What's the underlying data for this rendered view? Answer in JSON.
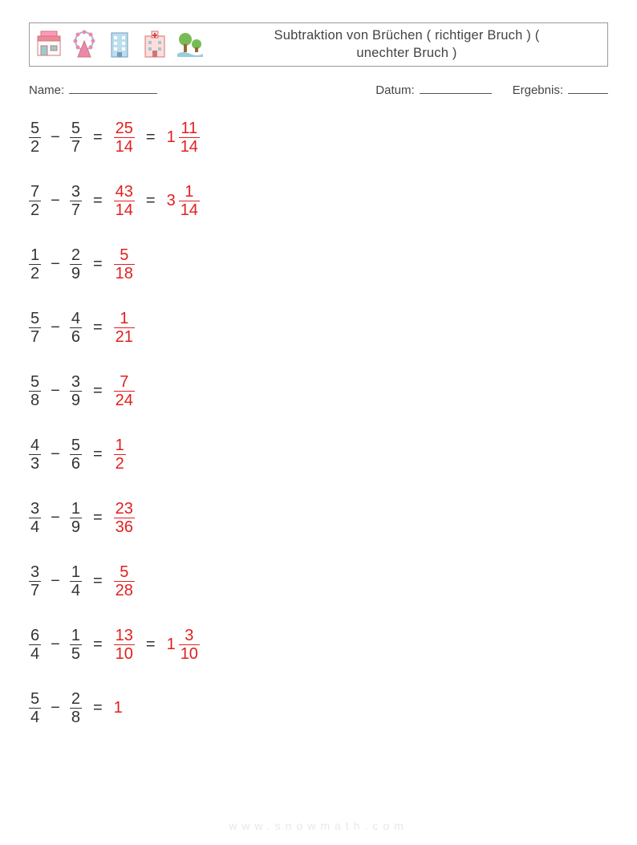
{
  "header": {
    "title_line1": "Subtraktion von Brüchen ( richtiger Bruch ) (",
    "title_line2": "unechter Bruch )"
  },
  "meta": {
    "name_label": "Name:",
    "date_label": "Datum:",
    "result_label": "Ergebnis:"
  },
  "colors": {
    "text": "#333333",
    "answer": "#e02020",
    "border": "#999999",
    "footer": "#e8e8e8",
    "background": "#ffffff"
  },
  "typography": {
    "body_fontsize": 20,
    "title_fontsize": 16.5,
    "meta_fontsize": 15
  },
  "operator": "−",
  "equals": "=",
  "problems": [
    {
      "a": {
        "n": "5",
        "d": "2"
      },
      "b": {
        "n": "5",
        "d": "7"
      },
      "ans": {
        "n": "25",
        "d": "14"
      },
      "mixed": {
        "w": "1",
        "n": "11",
        "d": "14"
      }
    },
    {
      "a": {
        "n": "7",
        "d": "2"
      },
      "b": {
        "n": "3",
        "d": "7"
      },
      "ans": {
        "n": "43",
        "d": "14"
      },
      "mixed": {
        "w": "3",
        "n": "1",
        "d": "14"
      }
    },
    {
      "a": {
        "n": "1",
        "d": "2"
      },
      "b": {
        "n": "2",
        "d": "9"
      },
      "ans": {
        "n": "5",
        "d": "18"
      }
    },
    {
      "a": {
        "n": "5",
        "d": "7"
      },
      "b": {
        "n": "4",
        "d": "6"
      },
      "ans": {
        "n": "1",
        "d": "21"
      }
    },
    {
      "a": {
        "n": "5",
        "d": "8"
      },
      "b": {
        "n": "3",
        "d": "9"
      },
      "ans": {
        "n": "7",
        "d": "24"
      }
    },
    {
      "a": {
        "n": "4",
        "d": "3"
      },
      "b": {
        "n": "5",
        "d": "6"
      },
      "ans": {
        "n": "1",
        "d": "2"
      }
    },
    {
      "a": {
        "n": "3",
        "d": "4"
      },
      "b": {
        "n": "1",
        "d": "9"
      },
      "ans": {
        "n": "23",
        "d": "36"
      }
    },
    {
      "a": {
        "n": "3",
        "d": "7"
      },
      "b": {
        "n": "1",
        "d": "4"
      },
      "ans": {
        "n": "5",
        "d": "28"
      }
    },
    {
      "a": {
        "n": "6",
        "d": "4"
      },
      "b": {
        "n": "1",
        "d": "5"
      },
      "ans": {
        "n": "13",
        "d": "10"
      },
      "mixed": {
        "w": "1",
        "n": "3",
        "d": "10"
      }
    },
    {
      "a": {
        "n": "5",
        "d": "4"
      },
      "b": {
        "n": "2",
        "d": "8"
      },
      "ans_whole": "1"
    }
  ],
  "footer": "www.snowmath.com"
}
